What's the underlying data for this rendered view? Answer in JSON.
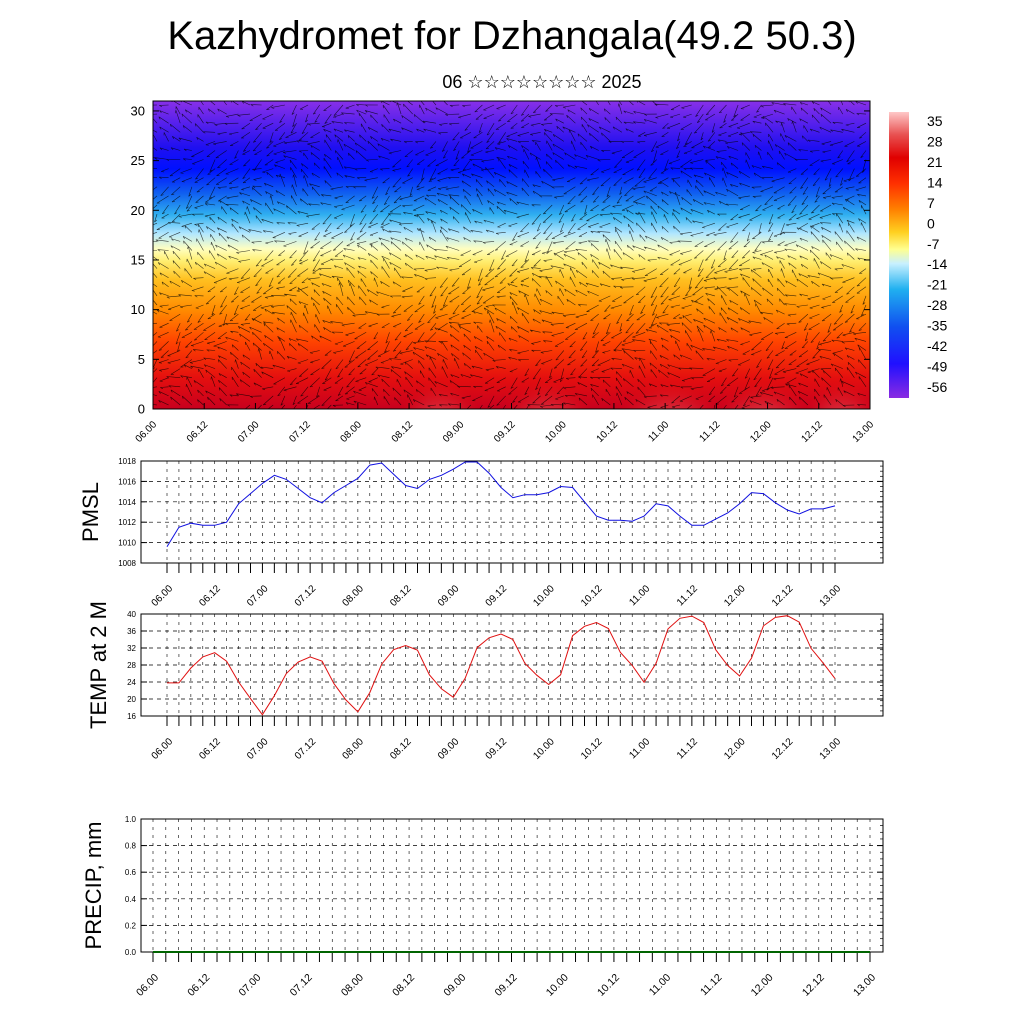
{
  "header": {
    "title": "Kazhydromet for Dzhangala(49.2 50.3)",
    "subtitle": "06 ☆☆☆☆☆☆☆☆ 2025"
  },
  "colors": {
    "pmsl_line": "#1010e0",
    "temp_line": "#e01010",
    "precip_line": "#006400"
  },
  "chart_data": [
    {
      "type": "heatmap",
      "title": "",
      "xlabel": "",
      "ylabel": "",
      "x_ticks": [
        "06.00",
        "06.12",
        "07.00",
        "07.12",
        "08.00",
        "08.12",
        "09.00",
        "09.12",
        "10.00",
        "10.12",
        "11.00",
        "11.12",
        "12.00",
        "12.12",
        "13.00"
      ],
      "y_ticks": [
        0,
        5,
        10,
        15,
        20,
        25,
        30
      ],
      "ylim": [
        0,
        31
      ],
      "colorbar_labels": [
        "35",
        "28",
        "21",
        "14",
        "7",
        "0",
        "-7",
        "-14",
        "-21",
        "-28",
        "-35",
        "-42",
        "-49",
        "-56"
      ],
      "colorbar_range": [
        -60,
        38
      ],
      "overlay": "wind vectors"
    },
    {
      "type": "line",
      "ylabel": "PMSL",
      "x_ticks": [
        "06.00",
        "06.12",
        "07.00",
        "07.12",
        "08.00",
        "08.12",
        "09.00",
        "09.12",
        "10.00",
        "10.12",
        "11.00",
        "11.12",
        "12.00",
        "12.12",
        "13.00"
      ],
      "y_ticks": [
        "1018",
        "1016",
        "1014",
        "1012",
        "1010",
        "1008"
      ],
      "ylim": [
        1008,
        1018
      ],
      "series": [
        {
          "values": [
            1009.6,
            1011.5,
            1011.9,
            1011.7,
            1011.7,
            1012.0,
            1013.8,
            1014.8,
            1015.8,
            1016.6,
            1016.2,
            1015.3,
            1014.4,
            1013.9,
            1014.9,
            1015.6,
            1016.3,
            1017.6,
            1017.8,
            1016.7,
            1015.6,
            1015.3,
            1016.2,
            1016.6,
            1017.2,
            1017.9,
            1017.9,
            1016.8,
            1015.4,
            1014.4,
            1014.7,
            1014.7,
            1014.9,
            1015.5,
            1015.4,
            1014.0,
            1012.6,
            1012.2,
            1012.2,
            1012.1,
            1012.6,
            1013.8,
            1013.6,
            1012.6,
            1011.7,
            1011.7,
            1012.3,
            1012.9,
            1013.8,
            1014.9,
            1014.8,
            1013.9,
            1013.2,
            1012.8,
            1013.3,
            1013.3,
            1013.6
          ]
        }
      ]
    },
    {
      "type": "line",
      "ylabel": "TEMP at 2 M",
      "x_ticks": [
        "06.00",
        "06.12",
        "07.00",
        "07.12",
        "08.00",
        "08.12",
        "09.00",
        "09.12",
        "10.00",
        "10.12",
        "11.00",
        "11.12",
        "12.00",
        "12.12",
        "13.00"
      ],
      "y_ticks": [
        "40",
        "36",
        "32",
        "28",
        "24",
        "20",
        "16"
      ],
      "ylim": [
        16,
        40
      ],
      "series": [
        {
          "values": [
            23.8,
            23.8,
            27.3,
            29.9,
            30.9,
            28.9,
            24.0,
            20.1,
            16.3,
            20.8,
            26.0,
            28.7,
            29.9,
            28.9,
            23.6,
            19.8,
            17.0,
            21.5,
            28.2,
            31.6,
            32.6,
            31.5,
            25.7,
            22.4,
            20.4,
            24.9,
            32.1,
            34.4,
            35.3,
            34.0,
            28.4,
            25.6,
            23.4,
            25.7,
            34.9,
            37.1,
            38.0,
            36.6,
            31.0,
            27.9,
            23.9,
            28.4,
            36.5,
            39.0,
            39.5,
            38.0,
            31.6,
            27.9,
            25.4,
            29.6,
            37.2,
            39.2,
            39.6,
            38.1,
            31.9,
            28.5,
            24.8
          ]
        }
      ]
    },
    {
      "type": "line",
      "ylabel": "PRECIP, mm",
      "x_ticks": [
        "06.00",
        "06.12",
        "07.00",
        "07.12",
        "08.00",
        "08.12",
        "09.00",
        "09.12",
        "10.00",
        "10.12",
        "11.00",
        "11.12",
        "12.00",
        "12.12",
        "13.00"
      ],
      "y_ticks": [
        "1.0",
        "0.8",
        "0.6",
        "0.4",
        "0.2",
        "0.0"
      ],
      "ylim": [
        0,
        1
      ],
      "series": [
        {
          "values": [
            0,
            0,
            0,
            0,
            0,
            0,
            0,
            0,
            0,
            0,
            0,
            0,
            0,
            0,
            0,
            0,
            0,
            0,
            0,
            0,
            0,
            0,
            0,
            0,
            0,
            0,
            0,
            0,
            0,
            0,
            0,
            0,
            0,
            0,
            0,
            0,
            0,
            0,
            0,
            0,
            0,
            0,
            0,
            0,
            0,
            0,
            0,
            0,
            0,
            0,
            0,
            0,
            0,
            0,
            0,
            0,
            0
          ]
        }
      ]
    }
  ]
}
